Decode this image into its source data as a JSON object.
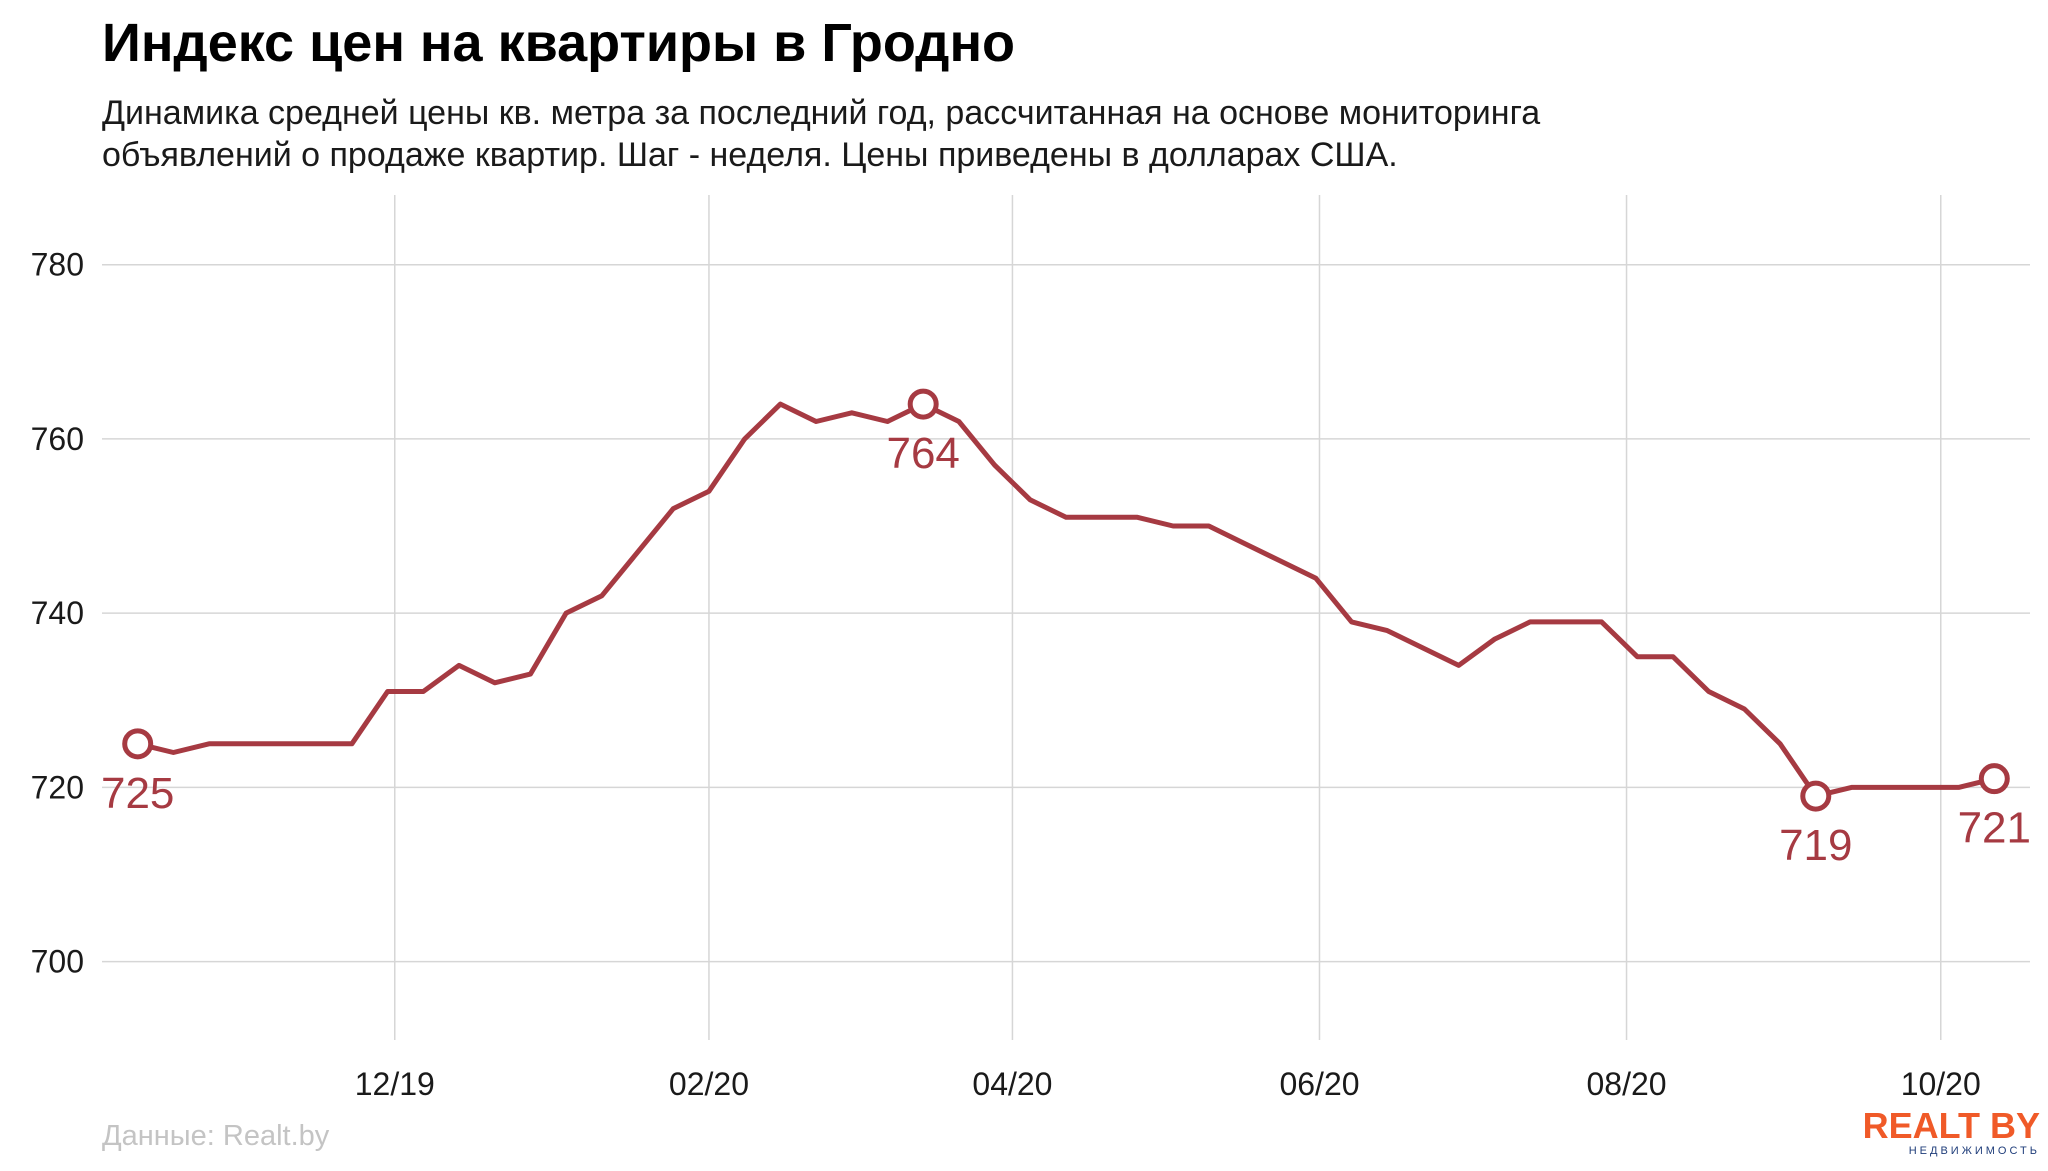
{
  "chart_data": {
    "type": "line",
    "title": "Индекс цен на квартиры в Гродно",
    "subtitle_lines": [
      "Динамика средней цены кв. метра за последний год, рассчитанная на основе мониторинга",
      "объявлений о продаже квартир. Шаг - неделя. Цены приведены в долларах США."
    ],
    "source": "Данные: Realt.by",
    "xlabel": "",
    "ylabel": "",
    "ylim": [
      691,
      788
    ],
    "y_ticks": [
      700,
      720,
      740,
      760,
      780
    ],
    "x_ticks": [
      {
        "label": "12/19",
        "week": 7.2
      },
      {
        "label": "02/20",
        "week": 16.0
      },
      {
        "label": "04/20",
        "week": 24.5
      },
      {
        "label": "06/20",
        "week": 33.1
      },
      {
        "label": "08/20",
        "week": 41.7
      },
      {
        "label": "10/20",
        "week": 50.5
      }
    ],
    "x_range": [
      -1,
      53
    ],
    "grid": true,
    "line_color": "#a63a42",
    "values": [
      725,
      724,
      725,
      725,
      725,
      725,
      725,
      731,
      731,
      734,
      732,
      733,
      740,
      742,
      747,
      752,
      754,
      760,
      764,
      762,
      763,
      762,
      764,
      762,
      757,
      753,
      751,
      751,
      751,
      750,
      750,
      748,
      746,
      744,
      739,
      738,
      736,
      734,
      737,
      739,
      739,
      739,
      735,
      735,
      731,
      729,
      725,
      719,
      720,
      720,
      720,
      720,
      721
    ],
    "highlights": [
      {
        "index": 0,
        "label": "725",
        "position": "below"
      },
      {
        "index": 22,
        "label": "764",
        "position": "below"
      },
      {
        "index": 47,
        "label": "719",
        "position": "below"
      },
      {
        "index": 52,
        "label": "721",
        "position": "below"
      }
    ]
  },
  "logo": {
    "main": "REALT BY",
    "sub": "НЕДВИЖИМОСТЬ",
    "accent": "#f05a28",
    "secondary": "#1f3d7a"
  }
}
